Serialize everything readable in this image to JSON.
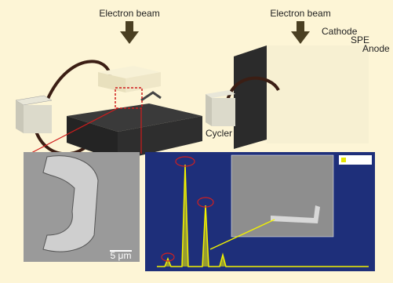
{
  "left_setup": {
    "beam_label": "Electron beam"
  },
  "right_setup": {
    "beam_label": "Electron beam",
    "cathode_label": "Cathode",
    "spe_label": "SPE",
    "anode_label": "Anode",
    "cycler_label": "Cycler"
  },
  "sem_image": {
    "scale_bar_label": "5 μm"
  }
}
